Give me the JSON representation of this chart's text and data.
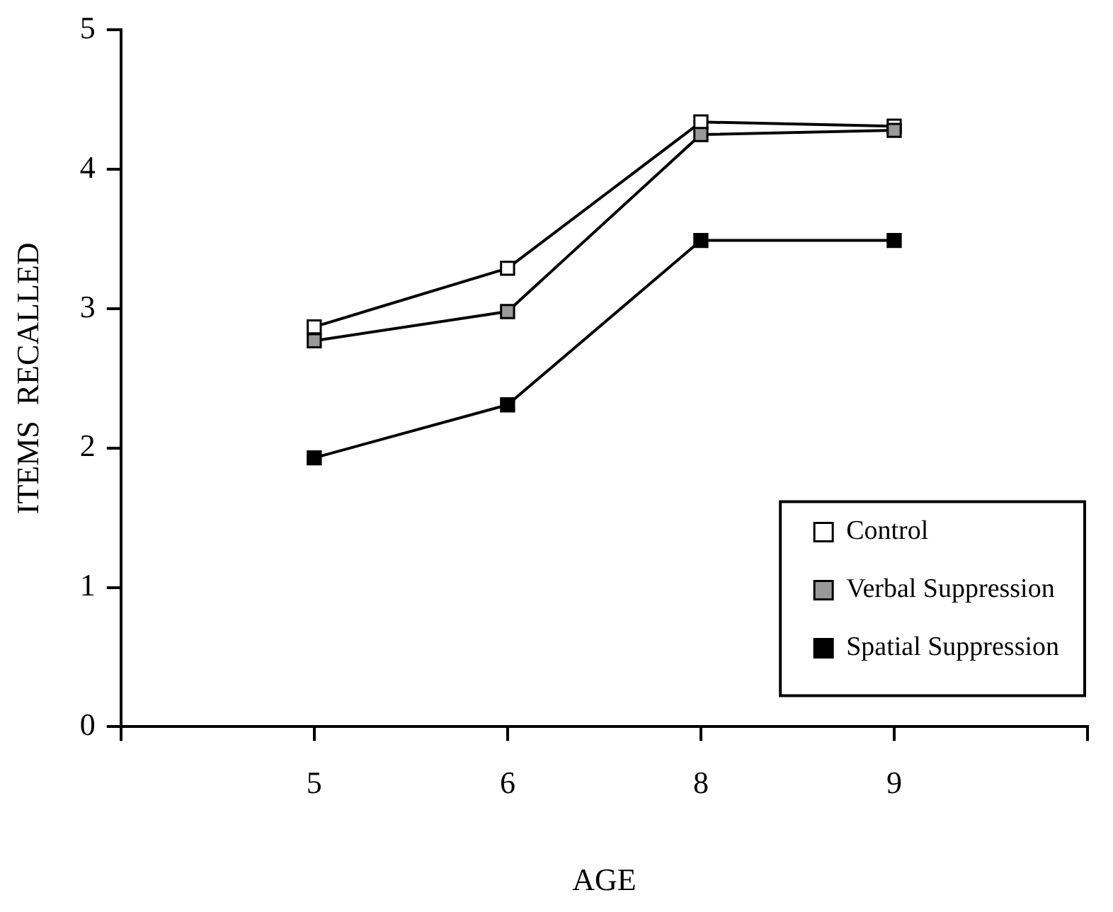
{
  "chart_data": {
    "type": "line",
    "xlabel": "AGE",
    "ylabel": "ITEMS  RECALLED",
    "categories": [
      null,
      "5",
      "6",
      "8",
      "9",
      null
    ],
    "series": [
      {
        "name": "Control",
        "color": "#ffffff",
        "values": [
          null,
          2.87,
          3.29,
          4.34,
          4.31,
          null
        ]
      },
      {
        "name": "Verbal Suppression",
        "color": "#999999",
        "values": [
          null,
          2.77,
          2.98,
          4.25,
          4.28,
          null
        ]
      },
      {
        "name": "Spatial Suppression",
        "color": "#000000",
        "values": [
          null,
          1.93,
          2.31,
          3.49,
          3.49,
          null
        ]
      }
    ],
    "ylim": [
      0,
      5
    ],
    "yticks": [
      0,
      1,
      2,
      3,
      4,
      5
    ],
    "grid": false,
    "legend": "bottom right",
    "marker": "square",
    "line_style": "solid"
  }
}
